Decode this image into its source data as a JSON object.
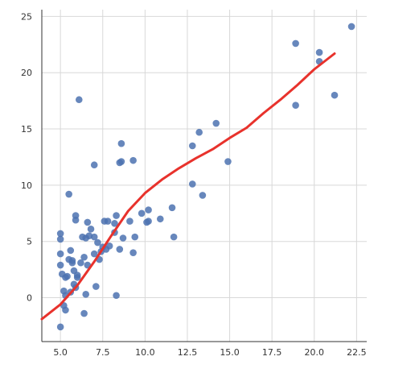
{
  "chart_data": {
    "type": "scatter",
    "title": "",
    "xlabel": "",
    "ylabel": "",
    "xlim": [
      3.9,
      23.1
    ],
    "ylim": [
      -3.9,
      25.6
    ],
    "xticks": [
      5.0,
      7.5,
      10.0,
      12.5,
      15.0,
      17.5,
      20.0,
      22.5
    ],
    "xtick_labels": [
      "5.0",
      "7.5",
      "10.0",
      "12.5",
      "15.0",
      "17.5",
      "20.0",
      "22.5"
    ],
    "yticks": [
      0,
      5,
      10,
      15,
      20,
      25
    ],
    "ytick_labels": [
      "0",
      "5",
      "10",
      "15",
      "20",
      "25"
    ],
    "grid": true,
    "colors": {
      "points": "#4c72b0",
      "fit_line": "#e8322c",
      "grid": "#d8d8d8"
    },
    "series": [
      {
        "kind": "scatter",
        "points": [
          [
            6.1,
            17.6
          ],
          [
            7.0,
            11.8
          ],
          [
            8.6,
            13.7
          ],
          [
            8.5,
            12.0
          ],
          [
            8.6,
            12.1
          ],
          [
            9.3,
            12.2
          ],
          [
            5.5,
            9.2
          ],
          [
            5.0,
            5.7
          ],
          [
            5.0,
            5.2
          ],
          [
            5.0,
            3.9
          ],
          [
            5.0,
            2.9
          ],
          [
            5.1,
            2.1
          ],
          [
            5.2,
            0.6
          ],
          [
            5.3,
            0.2
          ],
          [
            5.2,
            -0.7
          ],
          [
            5.3,
            -1.1
          ],
          [
            5.0,
            -2.6
          ],
          [
            5.4,
            1.9
          ],
          [
            5.5,
            3.4
          ],
          [
            5.6,
            4.2
          ],
          [
            5.7,
            3.1
          ],
          [
            5.8,
            2.4
          ],
          [
            5.8,
            1.2
          ],
          [
            5.6,
            0.5
          ],
          [
            5.9,
            0.9
          ],
          [
            6.0,
            1.8
          ],
          [
            6.2,
            3.1
          ],
          [
            6.4,
            3.6
          ],
          [
            6.5,
            5.3
          ],
          [
            6.6,
            6.7
          ],
          [
            6.7,
            5.5
          ],
          [
            6.5,
            0.3
          ],
          [
            6.4,
            -1.4
          ],
          [
            5.9,
            7.3
          ],
          [
            5.9,
            6.9
          ],
          [
            6.3,
            5.4
          ],
          [
            6.8,
            6.1
          ],
          [
            7.0,
            3.9
          ],
          [
            7.2,
            4.9
          ],
          [
            7.3,
            3.4
          ],
          [
            7.1,
            1.0
          ],
          [
            7.5,
            4.5
          ],
          [
            7.6,
            6.8
          ],
          [
            7.8,
            6.8
          ],
          [
            7.7,
            4.3
          ],
          [
            7.9,
            4.6
          ],
          [
            8.2,
            6.6
          ],
          [
            8.3,
            7.3
          ],
          [
            8.2,
            5.8
          ],
          [
            8.5,
            4.3
          ],
          [
            8.7,
            5.3
          ],
          [
            8.3,
            0.2
          ],
          [
            9.1,
            6.8
          ],
          [
            9.3,
            4.0
          ],
          [
            9.4,
            5.4
          ],
          [
            9.8,
            7.5
          ],
          [
            10.1,
            6.7
          ],
          [
            10.2,
            7.8
          ],
          [
            10.2,
            6.8
          ],
          [
            10.9,
            7.0
          ],
          [
            11.6,
            8.0
          ],
          [
            11.7,
            5.4
          ],
          [
            12.8,
            13.5
          ],
          [
            13.2,
            14.7
          ],
          [
            12.8,
            10.1
          ],
          [
            13.4,
            9.1
          ],
          [
            14.2,
            15.5
          ],
          [
            14.9,
            12.1
          ],
          [
            18.9,
            22.6
          ],
          [
            18.9,
            17.1
          ],
          [
            20.3,
            21.8
          ],
          [
            20.3,
            21.0
          ],
          [
            21.2,
            18.0
          ],
          [
            22.2,
            24.1
          ],
          [
            5.7,
            3.3
          ],
          [
            6.0,
            2.0
          ],
          [
            6.6,
            2.9
          ],
          [
            7.4,
            4.1
          ],
          [
            5.3,
            1.8
          ],
          [
            7.0,
            5.4
          ]
        ]
      },
      {
        "kind": "line",
        "points": [
          [
            3.9,
            -1.9
          ],
          [
            5.0,
            -0.6
          ],
          [
            6.0,
            1.1
          ],
          [
            7.0,
            3.2
          ],
          [
            8.0,
            5.5
          ],
          [
            9.0,
            7.7
          ],
          [
            10.0,
            9.3
          ],
          [
            11.0,
            10.5
          ],
          [
            12.0,
            11.5
          ],
          [
            13.0,
            12.4
          ],
          [
            14.0,
            13.2
          ],
          [
            15.0,
            14.2
          ],
          [
            16.0,
            15.1
          ],
          [
            17.0,
            16.4
          ],
          [
            18.0,
            17.6
          ],
          [
            19.0,
            18.9
          ],
          [
            20.0,
            20.3
          ],
          [
            21.2,
            21.7
          ]
        ]
      }
    ]
  }
}
